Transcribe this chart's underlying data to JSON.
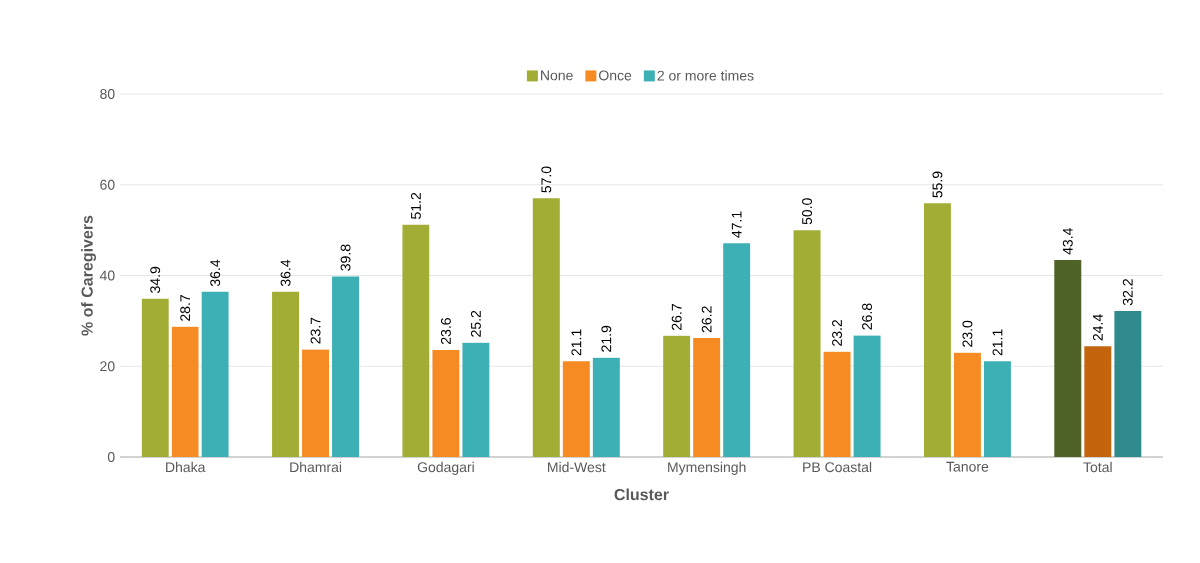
{
  "chart_data": {
    "type": "bar",
    "xlabel": "Cluster",
    "ylabel": "% of Caregivers",
    "categories": [
      "Dhaka",
      "Dhamrai",
      "Godagari",
      "Mid-West",
      "Mymensingh",
      "PB Coastal",
      "Tanore",
      "Total"
    ],
    "series": [
      {
        "name": "None",
        "color": "#a2ad35",
        "colors": [
          "#a2ad35",
          "#a2ad35",
          "#a2ad35",
          "#a2ad35",
          "#a2ad35",
          "#a2ad35",
          "#a2ad35",
          "#4f6228"
        ],
        "values": [
          34.9,
          36.4,
          51.2,
          57.0,
          26.7,
          50.0,
          55.9,
          43.4
        ],
        "value_labels": [
          "34.9",
          "36.4",
          "51.2",
          "57.0",
          "26.7",
          "50.0",
          "55.9",
          "43.4"
        ]
      },
      {
        "name": "Once",
        "color": "#f68b24",
        "colors": [
          "#f68b24",
          "#f68b24",
          "#f68b24",
          "#f68b24",
          "#f68b24",
          "#f68b24",
          "#f68b24",
          "#c4650d"
        ],
        "values": [
          28.7,
          23.7,
          23.6,
          21.1,
          26.2,
          23.2,
          23.0,
          24.4
        ],
        "value_labels": [
          "28.7",
          "23.7",
          "23.6",
          "21.1",
          "26.2",
          "23.2",
          "23.0",
          "24.4"
        ]
      },
      {
        "name": "2 or more times",
        "color": "#3cb0b4",
        "colors": [
          "#3cb0b4",
          "#3cb0b4",
          "#3cb0b4",
          "#3cb0b4",
          "#3cb0b4",
          "#3cb0b4",
          "#3cb0b4",
          "#2e8a8c"
        ],
        "values": [
          36.4,
          39.8,
          25.2,
          21.9,
          47.1,
          26.8,
          21.1,
          32.2
        ],
        "value_labels": [
          "36.4",
          "39.8",
          "25.2",
          "21.9",
          "47.1",
          "26.8",
          "21.1",
          "32.2"
        ]
      }
    ],
    "ylim": [
      0,
      80
    ],
    "yticks": [
      0,
      20,
      40,
      60,
      80
    ],
    "grid": "y",
    "legend": "top"
  }
}
